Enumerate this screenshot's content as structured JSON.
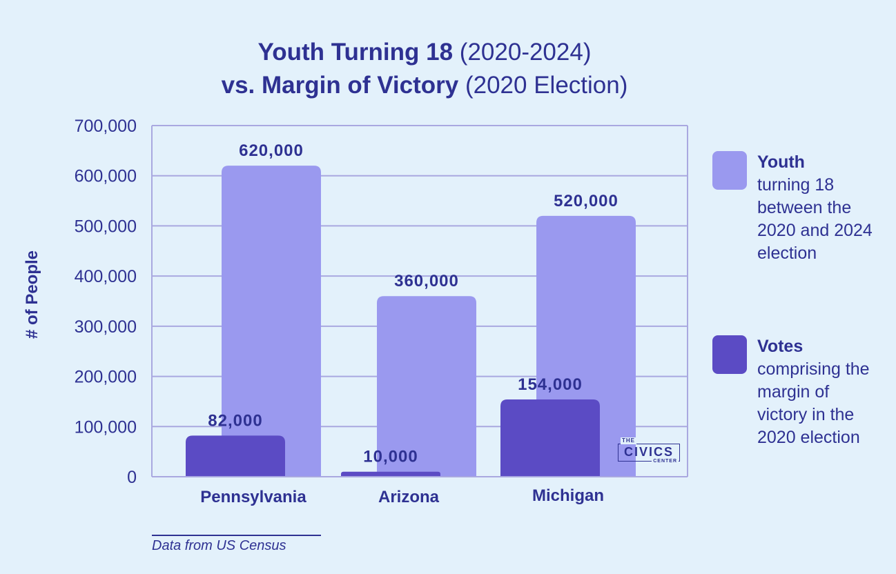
{
  "title": {
    "line1_bold": "Youth Turning 18",
    "line1_light": "(2020-2024)",
    "line2_bold": "vs. Margin of Victory",
    "line2_light": "(2020 Election)"
  },
  "chart_data": {
    "type": "bar",
    "categories": [
      "Pennsylvania",
      "Arizona",
      "Michigan"
    ],
    "series": [
      {
        "key": "votes",
        "values": [
          82000,
          10000,
          154000
        ],
        "labels": [
          "82,000",
          "10,000",
          "154,000"
        ],
        "color": "#5b4bc4"
      },
      {
        "key": "youth",
        "values": [
          620000,
          360000,
          520000
        ],
        "labels": [
          "620,000",
          "360,000",
          "520,000"
        ],
        "color": "#9a99ef"
      }
    ],
    "ylabel": "# of People",
    "ylim": [
      0,
      700000
    ],
    "yticks": [
      0,
      100000,
      200000,
      300000,
      400000,
      500000,
      600000,
      700000
    ],
    "ytick_labels": [
      "0",
      "100,000",
      "200,000",
      "300,000",
      "400,000",
      "500,000",
      "600,000",
      "700,000"
    ],
    "grid": true,
    "legend_position": "right"
  },
  "legend": {
    "youth": {
      "bold": "Youth",
      "text": "turning 18 between the 2020 and 2024 election"
    },
    "votes": {
      "bold": "Votes",
      "text": "comprising the margin of victory in the 2020 election"
    }
  },
  "footer": {
    "source": "Data from US Census"
  },
  "logo": {
    "top": "THE",
    "main": "CIVICS",
    "bottom": "CENTER"
  },
  "colors": {
    "background": "#e3f1fb",
    "text": "#2e3192",
    "youth": "#9a99ef",
    "votes": "#5b4bc4",
    "grid": "#a9a8e0"
  }
}
